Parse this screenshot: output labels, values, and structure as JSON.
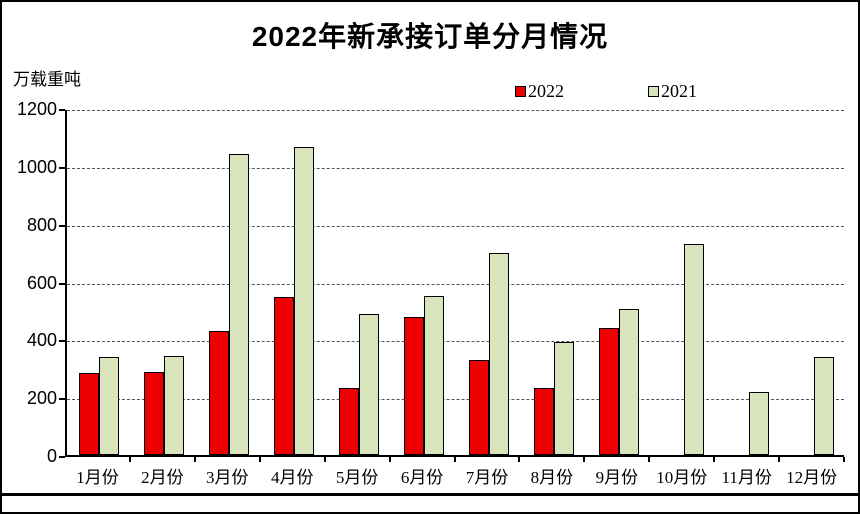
{
  "chart": {
    "title": "2022年新承接订单分月情况",
    "unit_label": "万载重吨"
  },
  "chart_data": {
    "type": "bar",
    "title": "2022年新承接订单分月情况",
    "ylabel": "万载重吨",
    "xlabel": "",
    "categories": [
      "1月份",
      "2月份",
      "3月份",
      "4月份",
      "5月份",
      "6月份",
      "7月份",
      "8月份",
      "9月份",
      "10月份",
      "11月份",
      "12月份"
    ],
    "series": [
      {
        "name": "2022",
        "color": "#ee0000",
        "values": [
          285,
          286,
          428,
          548,
          230,
          476,
          328,
          233,
          440,
          null,
          null,
          null
        ]
      },
      {
        "name": "2021",
        "color": "#d8e4bc",
        "values": [
          340,
          343,
          1040,
          1065,
          488,
          550,
          700,
          390,
          505,
          730,
          218,
          340
        ]
      }
    ],
    "ylim": [
      0,
      1200
    ],
    "ytick_step": 200,
    "grid": "horizontal-dashed",
    "legend_position": "top"
  }
}
